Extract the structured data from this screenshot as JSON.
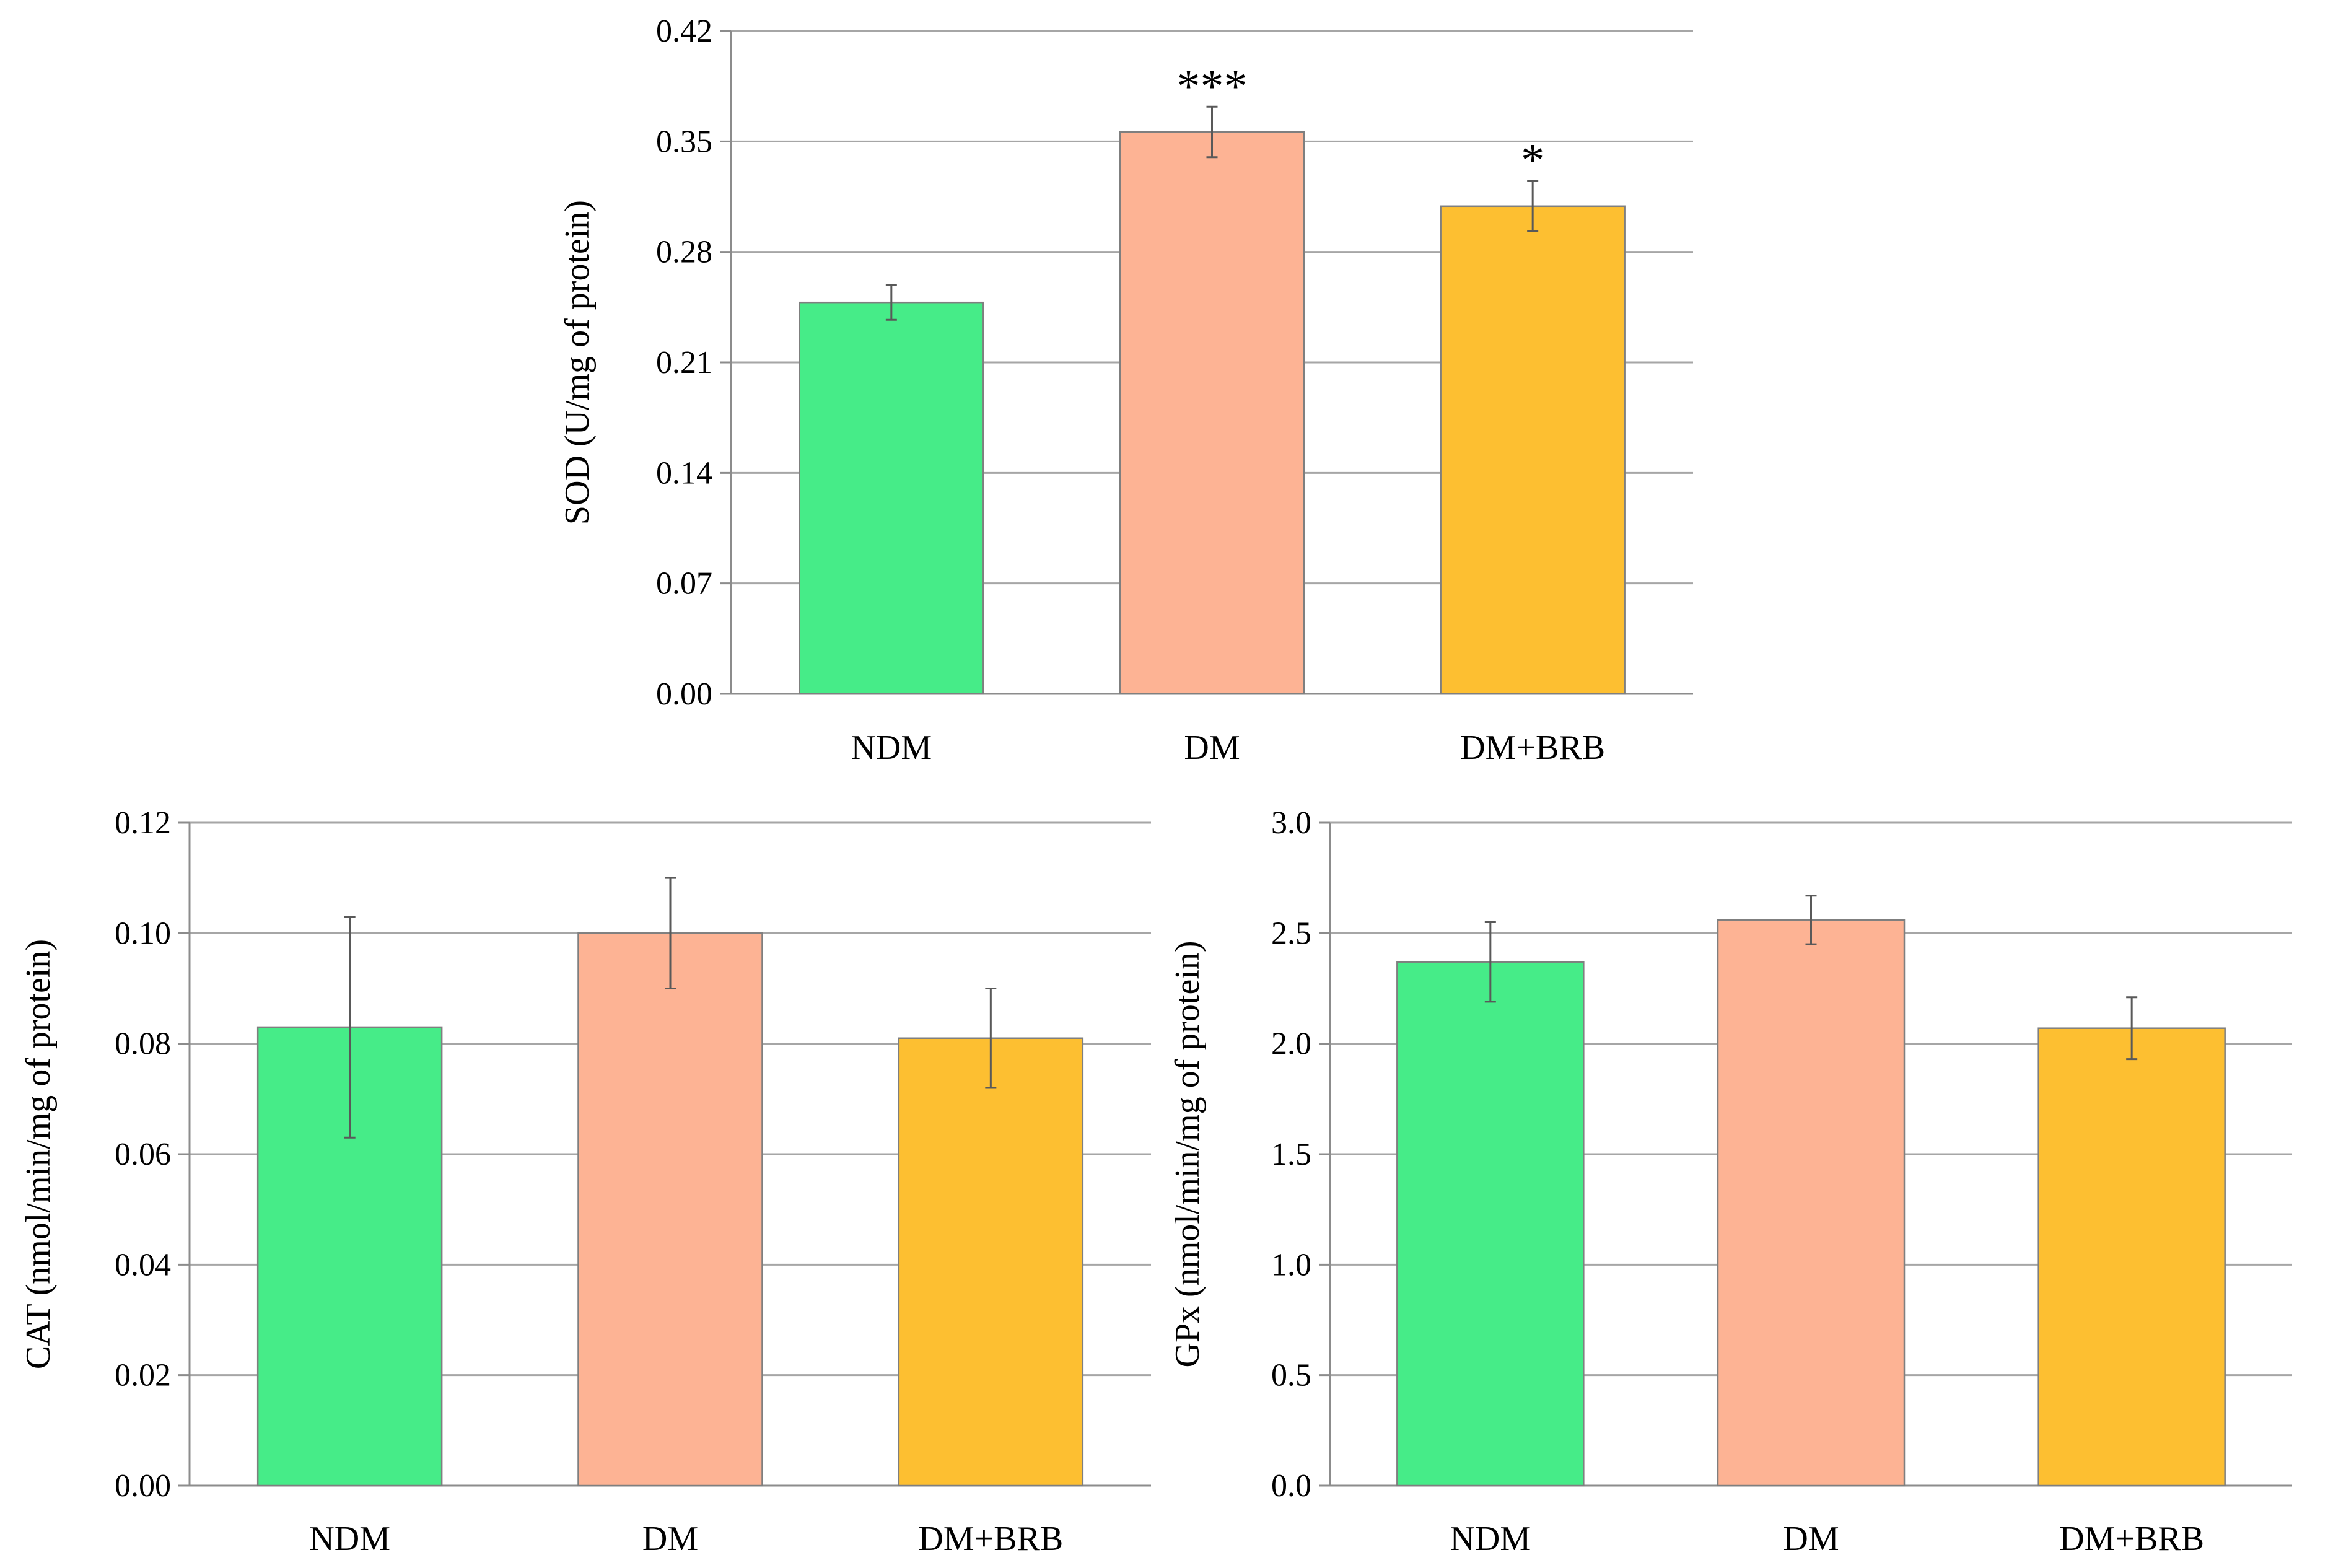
{
  "chart_data": [
    {
      "type": "bar",
      "panel": "top-center",
      "title": "",
      "xlabel": "",
      "ylabel": "SOD (U/mg of protein)",
      "categories": [
        "NDM",
        "DM",
        "DM+BRB"
      ],
      "values": [
        0.248,
        0.356,
        0.309
      ],
      "errors": [
        0.011,
        0.016,
        0.016
      ],
      "colors": [
        "#46EC88",
        "#FDB394",
        "#FDBF31"
      ],
      "annotations": [
        "",
        "***",
        "*"
      ],
      "ylim": [
        0,
        0.42
      ],
      "yticks": [
        0.0,
        0.07,
        0.14,
        0.21,
        0.28,
        0.35,
        0.42
      ],
      "ytick_labels": [
        "0.00",
        "0.07",
        "0.14",
        "0.21",
        "0.28",
        "0.35",
        "0.42"
      ],
      "grid": true
    },
    {
      "type": "bar",
      "panel": "bottom-left",
      "title": "",
      "xlabel": "",
      "ylabel": "CAT (nmol/min/mg of protein)",
      "categories": [
        "NDM",
        "DM",
        "DM+BRB"
      ],
      "values": [
        0.083,
        0.1,
        0.081
      ],
      "errors": [
        0.02,
        0.01,
        0.009
      ],
      "colors": [
        "#46EC88",
        "#FDB394",
        "#FDBF31"
      ],
      "annotations": [
        "",
        "",
        ""
      ],
      "ylim": [
        0,
        0.12
      ],
      "yticks": [
        0.0,
        0.02,
        0.04,
        0.06,
        0.08,
        0.1,
        0.12
      ],
      "ytick_labels": [
        "0.00",
        "0.02",
        "0.04",
        "0.06",
        "0.08",
        "0.10",
        "0.12"
      ],
      "grid": true
    },
    {
      "type": "bar",
      "panel": "bottom-right",
      "title": "",
      "xlabel": "",
      "ylabel": "GPx (nmol/min/mg of protein)",
      "categories": [
        "NDM",
        "DM",
        "DM+BRB"
      ],
      "values": [
        2.37,
        2.56,
        2.07
      ],
      "errors": [
        0.18,
        0.11,
        0.14
      ],
      "colors": [
        "#46EC88",
        "#FDB394",
        "#FDBF31"
      ],
      "annotations": [
        "",
        "",
        ""
      ],
      "ylim": [
        0,
        3.0
      ],
      "yticks": [
        0.0,
        0.5,
        1.0,
        1.5,
        2.0,
        2.5,
        3.0
      ],
      "ytick_labels": [
        "0.0",
        "0.5",
        "1.0",
        "1.5",
        "2.0",
        "2.5",
        "3.0"
      ],
      "grid": true
    }
  ]
}
